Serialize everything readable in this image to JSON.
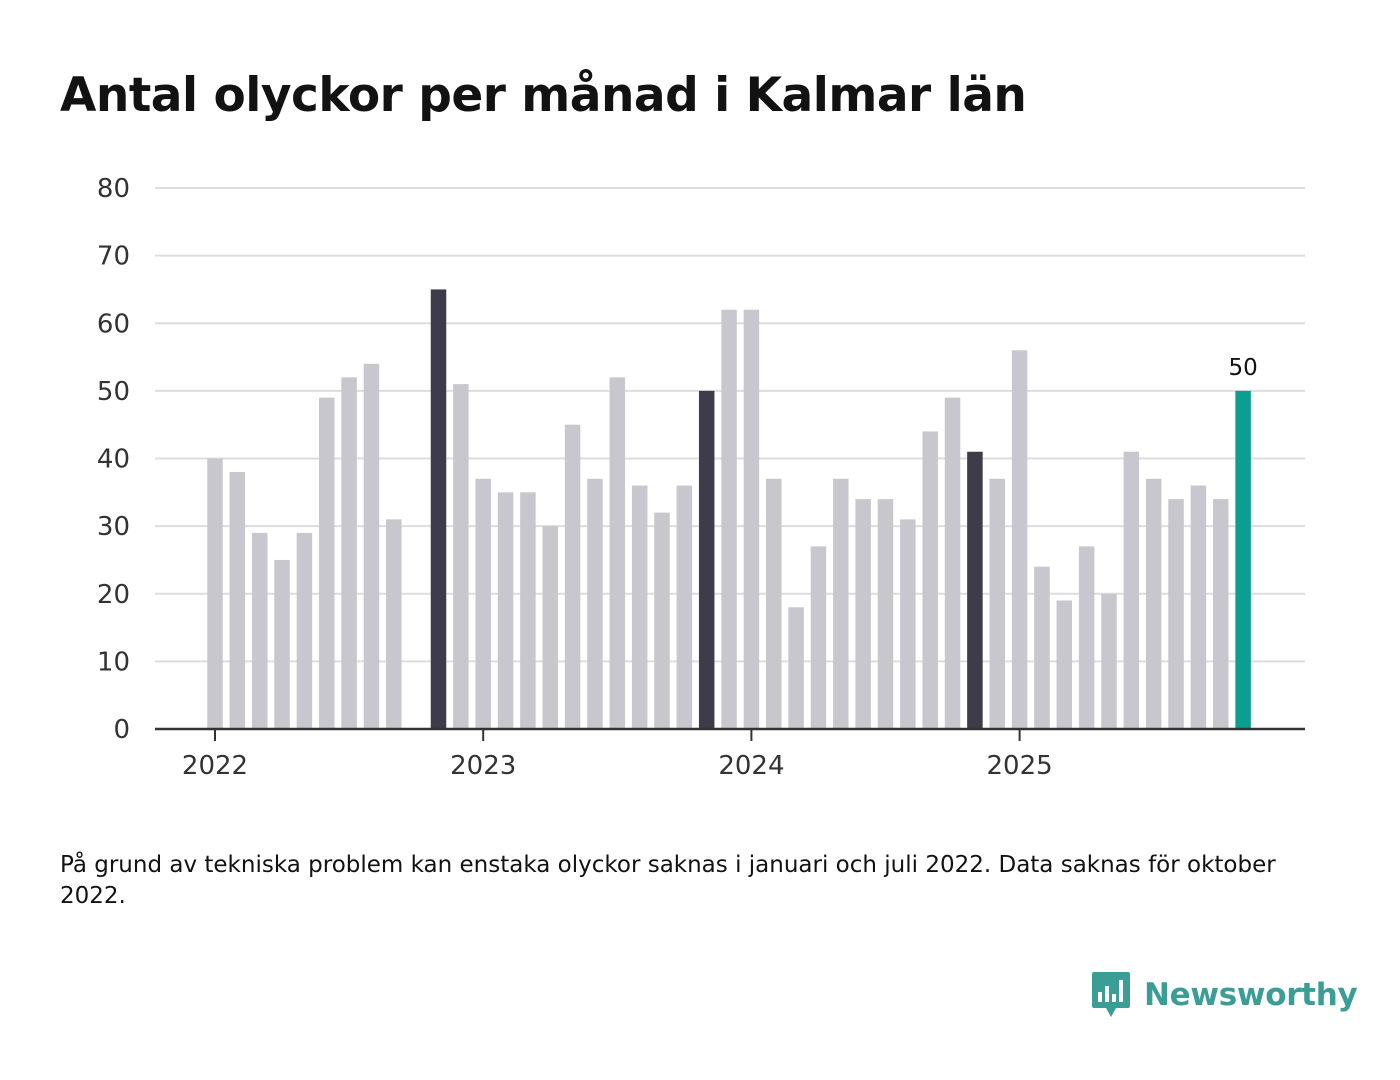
{
  "title": "Antal olyckor per månad i Kalmar län",
  "note": "På grund av tekniska problem kan enstaka olyckor saknas i januari och juli 2022. Data saknas för oktober 2022.",
  "brand": {
    "name": "Newsworthy",
    "logo_icon": "newsworthy-logo-icon"
  },
  "colors": {
    "bar": "#c8c7ce",
    "highlight_bar": "#3e3c48",
    "latest_bar": "#0d9e92",
    "grid": "#dddddd",
    "axis": "#333333"
  },
  "chart_data": {
    "type": "bar",
    "title": "Antal olyckor per månad i Kalmar län",
    "xlabel": "",
    "ylabel": "",
    "ylim": [
      0,
      80
    ],
    "yticks": [
      0,
      10,
      20,
      30,
      40,
      50,
      60,
      70,
      80
    ],
    "xtick_labels": [
      {
        "label": "2022",
        "category": "2022-01"
      },
      {
        "label": "2023",
        "category": "2023-01"
      },
      {
        "label": "2024",
        "category": "2024-01"
      },
      {
        "label": "2025",
        "category": "2025-01"
      }
    ],
    "categories": [
      "2022-01",
      "2022-02",
      "2022-03",
      "2022-04",
      "2022-05",
      "2022-06",
      "2022-07",
      "2022-08",
      "2022-09",
      "2022-10",
      "2022-11",
      "2022-12",
      "2023-01",
      "2023-02",
      "2023-03",
      "2023-04",
      "2023-05",
      "2023-06",
      "2023-07",
      "2023-08",
      "2023-09",
      "2023-10",
      "2023-11",
      "2023-12",
      "2024-01",
      "2024-02",
      "2024-03",
      "2024-04",
      "2024-05",
      "2024-06",
      "2024-07",
      "2024-08",
      "2024-09",
      "2024-10",
      "2024-11",
      "2024-12",
      "2025-01",
      "2025-02",
      "2025-03",
      "2025-04",
      "2025-05",
      "2025-06",
      "2025-07",
      "2025-08",
      "2025-09",
      "2025-10",
      "2025-11"
    ],
    "values": [
      40,
      38,
      29,
      25,
      29,
      49,
      52,
      54,
      31,
      null,
      65,
      51,
      37,
      35,
      35,
      30,
      45,
      37,
      52,
      36,
      32,
      36,
      50,
      62,
      62,
      37,
      18,
      27,
      37,
      34,
      34,
      31,
      44,
      49,
      41,
      37,
      56,
      24,
      19,
      27,
      20,
      41,
      37,
      34,
      36,
      34,
      50
    ],
    "highlighted": [
      "2022-11",
      "2023-11",
      "2024-11"
    ],
    "latest": "2025-11",
    "data_labels": [
      {
        "category": "2025-11",
        "text": "50"
      }
    ],
    "grid": true
  }
}
